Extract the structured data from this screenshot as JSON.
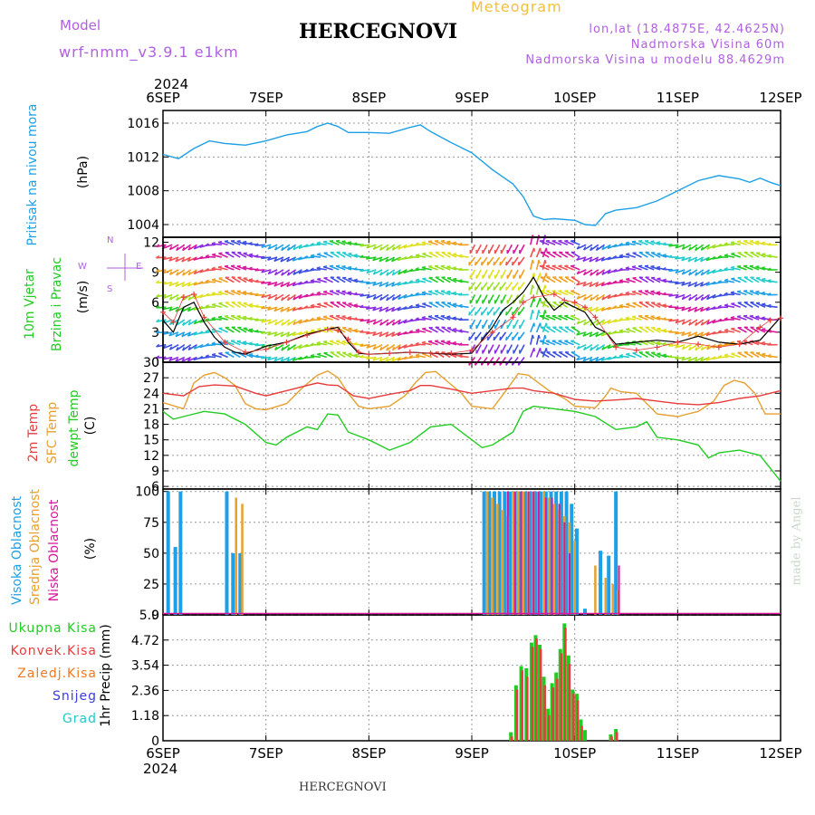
{
  "header": {
    "model_label": "Model",
    "model_name": "wrf-nmm_v3.9.1 e1km",
    "title": "HERCEGNOVI",
    "meteogram": "Meteogram",
    "lonlat": "lon,lat (18.4875E, 42.4625N)",
    "altitude": "Nadmorska Visina 60m",
    "model_altitude": "Nadmorska Visina u modelu 88.4629m",
    "footer_title": "HERCEGNOVI",
    "watermark": "made by Angel",
    "year_top": "2024",
    "year_bottom": "2024"
  },
  "colors": {
    "pressure": "#1ea0e6",
    "temp2m": "#e83c3c",
    "sfc": "#e6a030",
    "dewpt": "#22cc22",
    "high": "#1ea0e6",
    "mid": "#e6a030",
    "low": "#d8189c",
    "total": "#22cc22",
    "convective": "#e83c3c",
    "freezing": "#f07820",
    "snow": "#3c3cdc",
    "hail": "#22c8c8"
  },
  "chart_data": [
    {
      "type": "line",
      "panel": "pressure",
      "ylabels": [
        "Pritisak na nivou mora",
        "(hPa)"
      ],
      "x_categories": [
        "6SEP",
        "7SEP",
        "8SEP",
        "9SEP",
        "10SEP",
        "11SEP",
        "12SEP"
      ],
      "ylim": [
        1002.5,
        1017.5
      ],
      "yticks": [
        1004,
        1008,
        1012,
        1016
      ],
      "series": [
        {
          "color_key": "pressure",
          "x": [
            0,
            0.15,
            0.3,
            0.45,
            0.6,
            0.8,
            1.0,
            1.2,
            1.4,
            1.5,
            1.6,
            1.7,
            1.8,
            2.0,
            2.2,
            2.4,
            2.5,
            2.6,
            2.8,
            3.0,
            3.2,
            3.4,
            3.5,
            3.6,
            3.7,
            3.8,
            4.0,
            4.1,
            4.2,
            4.3,
            4.4,
            4.6,
            4.8,
            5.0,
            5.2,
            5.4,
            5.6,
            5.7,
            5.8,
            5.9,
            6.0
          ],
          "y": [
            1012.3,
            1011.8,
            1013.0,
            1013.9,
            1013.6,
            1013.4,
            1013.9,
            1014.6,
            1015.0,
            1015.6,
            1016.0,
            1015.6,
            1014.9,
            1014.9,
            1014.8,
            1015.5,
            1015.8,
            1015.0,
            1013.7,
            1012.5,
            1010.5,
            1008.8,
            1007.3,
            1005.0,
            1004.6,
            1004.7,
            1004.5,
            1004.0,
            1003.9,
            1005.3,
            1005.7,
            1006.0,
            1006.8,
            1008.0,
            1009.2,
            1009.8,
            1009.4,
            1009.0,
            1009.5,
            1009.0,
            1008.6
          ]
        }
      ]
    },
    {
      "type": "line",
      "panel": "wind",
      "ylabels": [
        "10m Vjetar",
        "Brzina i Pravac",
        "(m/s)"
      ],
      "compass": [
        "N",
        "W",
        "E",
        "S"
      ],
      "ylim": [
        0,
        12.5
      ],
      "yticks": [
        0,
        3,
        6,
        9,
        12
      ],
      "series": [
        {
          "name": "speed",
          "color_key": "wind_black",
          "x": [
            0,
            0.1,
            0.2,
            0.3,
            0.4,
            0.5,
            0.6,
            0.7,
            0.8,
            0.9,
            1.0,
            1.2,
            1.4,
            1.6,
            1.7,
            1.8,
            1.9,
            2.0,
            2.2,
            2.4,
            2.6,
            2.8,
            3.0,
            3.1,
            3.2,
            3.3,
            3.4,
            3.5,
            3.6,
            3.7,
            3.8,
            3.9,
            4.0,
            4.1,
            4.2,
            4.3,
            4.4,
            4.6,
            4.8,
            5.0,
            5.2,
            5.4,
            5.6,
            5.8,
            6.0
          ],
          "y": [
            4.2,
            3.0,
            5.5,
            6.0,
            4.0,
            2.5,
            1.5,
            1.0,
            0.8,
            1.2,
            1.6,
            2.0,
            2.8,
            3.3,
            3.5,
            2.0,
            0.9,
            0.8,
            0.9,
            1.0,
            0.9,
            0.8,
            0.9,
            2.2,
            3.5,
            5.2,
            6.0,
            7.0,
            8.5,
            6.5,
            5.2,
            6.0,
            5.5,
            5.0,
            3.5,
            3.0,
            1.8,
            2.0,
            2.2,
            2.0,
            2.6,
            2.0,
            1.8,
            2.2,
            4.5
          ]
        },
        {
          "name": "gust",
          "color_key": "temp2m",
          "x": [
            0,
            0.1,
            0.2,
            0.3,
            0.4,
            0.6,
            0.8,
            1.0,
            1.2,
            1.4,
            1.6,
            1.7,
            1.8,
            1.9,
            2.0,
            2.2,
            2.4,
            2.6,
            2.8,
            3.0,
            3.2,
            3.4,
            3.5,
            3.6,
            3.8,
            3.9,
            4.0,
            4.1,
            4.2,
            4.4,
            4.6,
            4.8,
            5.0,
            5.2,
            5.4,
            5.6,
            5.8,
            5.9,
            6.0
          ],
          "y": [
            5.0,
            4.0,
            6.5,
            6.8,
            4.5,
            2.0,
            1.0,
            1.3,
            2.0,
            2.7,
            3.3,
            3.2,
            2.3,
            1.0,
            0.8,
            0.9,
            1.0,
            0.9,
            0.9,
            1.2,
            3.0,
            4.5,
            6.0,
            6.5,
            6.8,
            6.2,
            6.0,
            5.5,
            4.5,
            1.5,
            1.2,
            1.5,
            2.0,
            1.8,
            1.5,
            1.8,
            3.5,
            4.2,
            4.4
          ]
        }
      ]
    },
    {
      "type": "line",
      "panel": "temperature",
      "ylabels": [
        "2m Temp",
        "SFC Temp",
        "dewpt Temp",
        "(C)"
      ],
      "ylim": [
        5.5,
        30
      ],
      "yticks": [
        6,
        9,
        12,
        15,
        18,
        21,
        24,
        27,
        30
      ],
      "series": [
        {
          "name": "2m Temp",
          "color_key": "temp2m",
          "x": [
            0,
            0.2,
            0.35,
            0.5,
            0.7,
            0.9,
            1.0,
            1.2,
            1.4,
            1.5,
            1.6,
            1.7,
            1.85,
            2.0,
            2.2,
            2.4,
            2.5,
            2.6,
            2.8,
            3.0,
            3.2,
            3.4,
            3.5,
            3.6,
            3.8,
            4.0,
            4.2,
            4.4,
            4.6,
            4.8,
            5.0,
            5.2,
            5.4,
            5.6,
            5.8,
            6.0
          ],
          "y": [
            24.0,
            23.5,
            25.3,
            25.6,
            25.4,
            24.0,
            23.5,
            24.5,
            25.5,
            26.0,
            25.6,
            25.5,
            23.5,
            23.0,
            23.8,
            24.5,
            25.5,
            25.5,
            24.8,
            24.0,
            24.5,
            25.0,
            25.0,
            24.5,
            24.0,
            22.8,
            22.5,
            22.7,
            23.0,
            22.5,
            22.0,
            21.8,
            22.2,
            23.0,
            23.5,
            24.5
          ]
        },
        {
          "name": "SFC Temp",
          "color_key": "sfc",
          "x": [
            0,
            0.2,
            0.3,
            0.4,
            0.5,
            0.6,
            0.7,
            0.8,
            0.9,
            1.0,
            1.2,
            1.35,
            1.5,
            1.6,
            1.7,
            1.8,
            1.9,
            2.0,
            2.2,
            2.35,
            2.45,
            2.55,
            2.65,
            2.75,
            2.9,
            3.0,
            3.2,
            3.35,
            3.45,
            3.55,
            3.65,
            3.75,
            3.9,
            4.0,
            4.2,
            4.3,
            4.35,
            4.45,
            4.6,
            4.8,
            5.0,
            5.2,
            5.35,
            5.45,
            5.55,
            5.65,
            5.75,
            5.85,
            6.0
          ],
          "y": [
            22.2,
            21.0,
            26.0,
            27.5,
            28.0,
            27.0,
            25.5,
            22.0,
            21.0,
            20.8,
            22.0,
            25.0,
            27.5,
            28.3,
            27.0,
            24.0,
            21.5,
            21.0,
            21.5,
            23.5,
            26.0,
            28.0,
            28.2,
            26.5,
            24.0,
            21.5,
            21.0,
            25.0,
            27.8,
            27.5,
            26.0,
            24.5,
            23.0,
            21.5,
            21.2,
            23.5,
            25.0,
            24.3,
            24.0,
            20.0,
            19.5,
            20.5,
            22.5,
            25.5,
            26.5,
            26.0,
            24.0,
            20.0,
            20.0
          ]
        },
        {
          "name": "dewpt Temp",
          "color_key": "dewpt",
          "x": [
            0,
            0.1,
            0.2,
            0.4,
            0.6,
            0.8,
            1.0,
            1.1,
            1.2,
            1.4,
            1.5,
            1.6,
            1.7,
            1.8,
            2.0,
            2.1,
            2.2,
            2.4,
            2.6,
            2.8,
            3.0,
            3.1,
            3.2,
            3.4,
            3.5,
            3.6,
            3.8,
            4.0,
            4.2,
            4.4,
            4.6,
            4.7,
            4.8,
            5.0,
            5.2,
            5.3,
            5.4,
            5.6,
            5.8,
            5.9,
            6.0
          ],
          "y": [
            20.5,
            19.0,
            19.5,
            20.5,
            20.0,
            18.0,
            14.5,
            14.0,
            15.5,
            17.5,
            17.0,
            20.0,
            19.8,
            16.5,
            15.0,
            14.0,
            13.0,
            14.5,
            17.5,
            18.0,
            15.0,
            13.5,
            14.0,
            16.5,
            20.5,
            21.5,
            21.0,
            20.5,
            19.5,
            17.0,
            17.5,
            18.5,
            15.5,
            15.0,
            14.0,
            11.5,
            12.5,
            13.0,
            12.0,
            9.5,
            7.0
          ]
        }
      ]
    },
    {
      "type": "bar",
      "panel": "cloud",
      "ylabels": [
        "Visoka Oblacnost",
        "Srednja Oblacnost",
        "Niska Oblacnost",
        "(%)"
      ],
      "ylim": [
        0,
        102
      ],
      "yticks": [
        0,
        25,
        50,
        75,
        100
      ],
      "series": [
        {
          "name": "Visoka Oblacnost",
          "color_key": "high",
          "x": [
            0.05,
            0.12,
            0.17,
            0.62,
            0.68,
            0.75,
            3.12,
            3.17,
            3.22,
            3.27,
            3.32,
            3.37,
            3.42,
            3.47,
            3.52,
            3.57,
            3.62,
            3.67,
            3.72,
            3.77,
            3.82,
            3.87,
            3.92,
            3.97,
            4.02,
            4.1,
            4.25,
            4.33,
            4.4
          ],
          "y": [
            100,
            55,
            100,
            100,
            50,
            50,
            100,
            100,
            100,
            100,
            100,
            100,
            100,
            100,
            100,
            100,
            100,
            100,
            100,
            100,
            100,
            100,
            100,
            90,
            70,
            5,
            52,
            48,
            100
          ]
        },
        {
          "name": "Srednja Oblacnost",
          "color_key": "mid",
          "x": [
            0.71,
            0.77,
            3.15,
            3.2,
            3.25,
            3.3,
            3.35,
            3.4,
            3.45,
            3.5,
            3.55,
            3.6,
            3.65,
            3.7,
            3.75,
            3.8,
            3.85,
            3.9,
            3.95,
            4.0,
            4.2,
            4.3,
            4.37,
            4.42
          ],
          "y": [
            95,
            90,
            100,
            95,
            90,
            85,
            80,
            100,
            100,
            100,
            100,
            100,
            100,
            100,
            95,
            90,
            85,
            80,
            75,
            60,
            40,
            30,
            25,
            20
          ]
        },
        {
          "name": "Niska Oblacnost",
          "color_key": "low",
          "x": [
            3.35,
            3.42,
            3.48,
            3.55,
            3.6,
            3.65,
            3.72,
            3.78,
            3.85,
            3.9,
            3.95,
            4.43
          ],
          "y": [
            100,
            100,
            100,
            100,
            100,
            100,
            95,
            95,
            90,
            75,
            50,
            40
          ]
        }
      ]
    },
    {
      "type": "bar",
      "panel": "precip",
      "ylabels": [
        "1hr Precip (mm)"
      ],
      "legend": [
        "Ukupna Kisa",
        "Konvek.Kisa",
        "Zaledj.Kisa",
        "Snijeg",
        "Grad"
      ],
      "ylim": [
        0,
        5.9
      ],
      "yticks": [
        "0",
        "1.18",
        "2.36",
        "3.54",
        "4.72",
        "5.9"
      ],
      "x_categories": [
        "6SEP",
        "7SEP",
        "8SEP",
        "9SEP",
        "10SEP",
        "11SEP",
        "12SEP"
      ],
      "series": [
        {
          "name": "Ukupna Kisa",
          "color_key": "total",
          "x": [
            3.38,
            3.43,
            3.48,
            3.53,
            3.58,
            3.62,
            3.66,
            3.7,
            3.74,
            3.78,
            3.82,
            3.86,
            3.9,
            3.94,
            3.98,
            4.02,
            4.06,
            4.1,
            4.35,
            4.4
          ],
          "y": [
            0.4,
            2.6,
            3.5,
            3.4,
            4.6,
            4.95,
            4.5,
            3.0,
            1.5,
            2.7,
            3.2,
            4.3,
            5.5,
            4.0,
            2.4,
            2.2,
            1.0,
            0.5,
            0.3,
            0.55
          ]
        },
        {
          "name": "Konvek.Kisa",
          "color_key": "convective",
          "x": [
            3.39,
            3.44,
            3.49,
            3.54,
            3.59,
            3.63,
            3.67,
            3.71,
            3.75,
            3.79,
            3.83,
            3.87,
            3.91,
            3.95,
            3.99,
            4.03,
            4.07,
            4.36,
            4.41
          ],
          "y": [
            0.2,
            2.4,
            3.3,
            3.0,
            4.4,
            4.8,
            4.3,
            2.6,
            1.2,
            2.5,
            2.9,
            4.1,
            5.3,
            3.6,
            2.2,
            1.9,
            0.7,
            0.2,
            0.4
          ]
        }
      ]
    }
  ]
}
